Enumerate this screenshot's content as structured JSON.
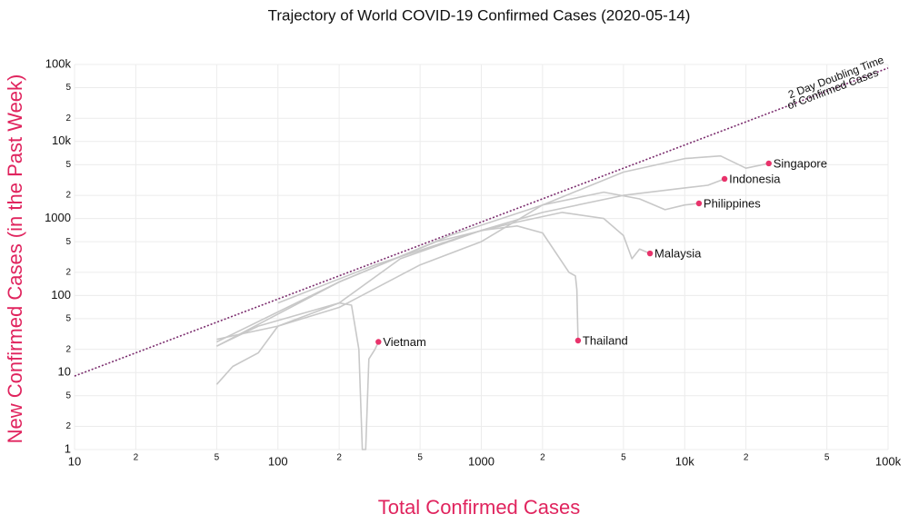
{
  "chart_data": {
    "type": "line",
    "title": "Trajectory of World COVID-19 Confirmed Cases (2020-05-14)",
    "x_label": "Total Confirmed Cases",
    "y_label": "New Confirmed Cases (in the Past Week)",
    "x_log": true,
    "y_log": true,
    "grid": true,
    "line_color": "#c8c8c8",
    "point_color": "#e8336b",
    "label_color": "#e0245e",
    "xlim": [
      10,
      100000
    ],
    "ylim": [
      1,
      100000
    ],
    "xticks": [
      10,
      {
        "value": 20,
        "label": "2"
      },
      {
        "value": 50,
        "label": "5"
      },
      100,
      {
        "value": 200,
        "label": "2"
      },
      {
        "value": 500,
        "label": "5"
      },
      1000,
      {
        "value": 2000,
        "label": "2"
      },
      {
        "value": 5000,
        "label": "5"
      },
      {
        "value": 10000,
        "label": "10k"
      },
      {
        "value": 20000,
        "label": "2"
      },
      {
        "value": 50000,
        "label": "5"
      },
      {
        "value": 100000,
        "label": "100k"
      }
    ],
    "yticks": [
      1,
      {
        "value": 2,
        "label": "2"
      },
      {
        "value": 5,
        "label": "5"
      },
      10,
      {
        "value": 20,
        "label": "2"
      },
      {
        "value": 50,
        "label": "5"
      },
      100,
      {
        "value": 200,
        "label": "2"
      },
      {
        "value": 500,
        "label": "5"
      },
      1000,
      {
        "value": 2000,
        "label": "2"
      },
      {
        "value": 5000,
        "label": "5"
      },
      {
        "value": 10000,
        "label": "10k"
      },
      {
        "value": 20000,
        "label": "2"
      },
      {
        "value": 50000,
        "label": "5"
      },
      {
        "value": 100000,
        "label": "100k"
      }
    ],
    "reference_line": {
      "label_lines": [
        "2 Day Doubling Time",
        "of Confirmed Cases"
      ],
      "color": "#7b2d6e",
      "x": [
        10,
        100000
      ],
      "y": [
        9,
        90000
      ]
    },
    "series": [
      {
        "name": "Singapore",
        "x": [
          50,
          100,
          200,
          500,
          1000,
          2000,
          5000,
          10000,
          15000,
          20000,
          25900
        ],
        "y": [
          27,
          40,
          70,
          250,
          500,
          1500,
          4000,
          6000,
          6500,
          4500,
          5190
        ]
      },
      {
        "name": "Indonesia",
        "x": [
          100,
          300,
          1000,
          2000,
          5000,
          10000,
          13000,
          15700
        ],
        "y": [
          80,
          250,
          700,
          1200,
          2000,
          2500,
          2700,
          3270
        ]
      },
      {
        "name": "Philippines",
        "x": [
          50,
          200,
          700,
          2000,
          4000,
          6000,
          8000,
          10000,
          11750
        ],
        "y": [
          25,
          150,
          600,
          1500,
          2200,
          1800,
          1300,
          1500,
          1570
        ]
      },
      {
        "name": "Malaysia",
        "x": [
          50,
          200,
          600,
          1500,
          2500,
          4000,
          5000,
          5500,
          6000,
          6750
        ],
        "y": [
          22,
          150,
          500,
          900,
          1200,
          1000,
          600,
          300,
          400,
          352
        ]
      },
      {
        "name": "Thailand",
        "x": [
          50,
          80,
          200,
          400,
          1000,
          1500,
          2000,
          2700,
          2900,
          2950,
          2990
        ],
        "y": [
          22,
          40,
          80,
          300,
          700,
          800,
          650,
          200,
          180,
          120,
          26
        ]
      },
      {
        "name": "Vietnam",
        "x": [
          50,
          60,
          80,
          100,
          150,
          200,
          230,
          250,
          260,
          270,
          280,
          300,
          312
        ],
        "y": [
          7,
          12,
          18,
          40,
          60,
          80,
          75,
          20,
          1,
          1,
          15,
          20,
          25
        ]
      }
    ]
  }
}
